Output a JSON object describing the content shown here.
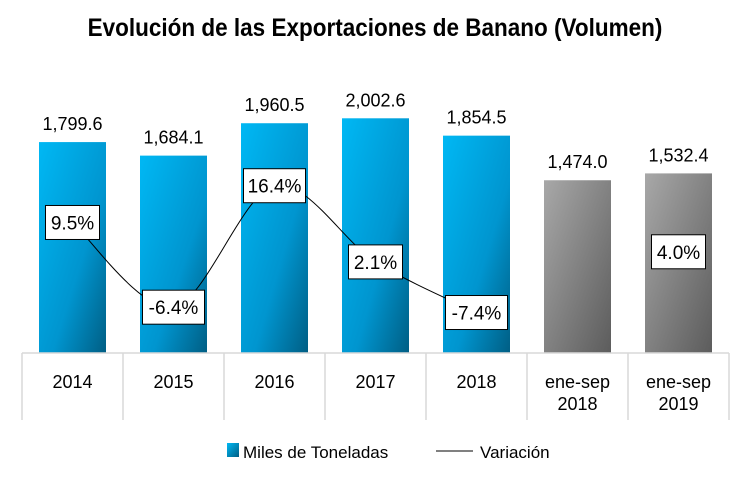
{
  "chart_data": {
    "type": "bar",
    "title": "Evolución de las Exportaciones de Banano (Volumen)",
    "categories": [
      "2014",
      "2015",
      "2016",
      "2017",
      "2018",
      "ene-sep 2018",
      "ene-sep 2019"
    ],
    "series": [
      {
        "name": "Miles de Toneladas",
        "type": "bar",
        "values": [
          1799.6,
          1684.1,
          1960.5,
          2002.6,
          1854.5,
          1474.0,
          1532.4
        ],
        "value_labels": [
          "1,799.6",
          "1,684.1",
          "1,960.5",
          "2,002.6",
          "1,854.5",
          "1,474.0",
          "1,532.4"
        ]
      },
      {
        "name": "Variación",
        "type": "line",
        "values": [
          9.5,
          -6.4,
          16.4,
          2.1,
          -7.4,
          null,
          4.0
        ],
        "value_labels": [
          "9.5%",
          "-6.4%",
          "16.4%",
          "2.1%",
          "-7.4%",
          "",
          "4.0%"
        ]
      }
    ],
    "ylim": [
      0,
      2500
    ],
    "y2lim": [
      -15,
      40
    ],
    "grid": false,
    "legend": "bottom",
    "colors": {
      "annual_bar": "#00b0ee",
      "annual_bar_dark": "#005f86",
      "partial_bar": "#a6a6a6",
      "partial_bar_dark": "#5e5e5e",
      "line": "#000000",
      "axis": "#d9d9d9"
    }
  }
}
